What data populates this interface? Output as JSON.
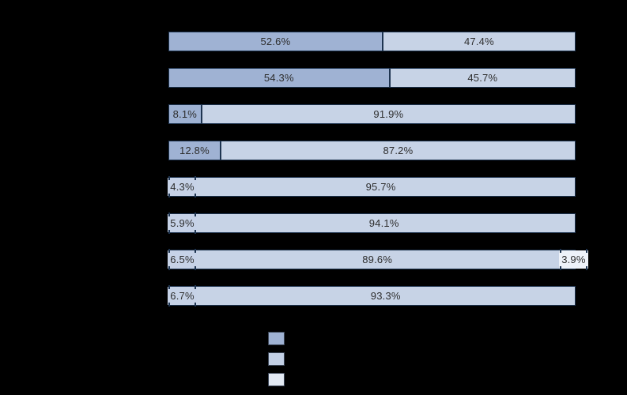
{
  "chart_data": {
    "type": "bar",
    "orientation": "horizontal",
    "stacked": true,
    "unit": "%",
    "title_visible": false,
    "category_labels_visible": false,
    "axis_visible": false,
    "xlim": [
      0,
      100
    ],
    "inside_label_min": 8,
    "rows": [
      {
        "segments": [
          {
            "series": 0,
            "value": 52.6,
            "label": "52.6%"
          },
          {
            "series": 1,
            "value": 47.4,
            "label": "47.4%"
          }
        ]
      },
      {
        "segments": [
          {
            "series": 0,
            "value": 54.3,
            "label": "54.3%"
          },
          {
            "series": 1,
            "value": 45.7,
            "label": "45.7%"
          }
        ]
      },
      {
        "segments": [
          {
            "series": 0,
            "value": 8.1,
            "label": "8.1%"
          },
          {
            "series": 1,
            "value": 91.9,
            "label": "91.9%"
          }
        ]
      },
      {
        "segments": [
          {
            "series": 0,
            "value": 12.8,
            "label": "12.8%"
          },
          {
            "series": 1,
            "value": 87.2,
            "label": "87.2%"
          }
        ]
      },
      {
        "segments": [
          {
            "series": 0,
            "value": 4.3,
            "label": "4.3%"
          },
          {
            "series": 1,
            "value": 95.7,
            "label": "95.7%"
          }
        ]
      },
      {
        "segments": [
          {
            "series": 0,
            "value": 5.9,
            "label": "5.9%"
          },
          {
            "series": 1,
            "value": 94.1,
            "label": "94.1%"
          }
        ]
      },
      {
        "segments": [
          {
            "series": 0,
            "value": 6.5,
            "label": "6.5%"
          },
          {
            "series": 1,
            "value": 89.6,
            "label": "89.6%"
          },
          {
            "series": 2,
            "value": 3.9,
            "label": "3.9%"
          }
        ]
      },
      {
        "segments": [
          {
            "series": 0,
            "value": 6.7,
            "label": "6.7%"
          },
          {
            "series": 1,
            "value": 93.3,
            "label": "93.3%"
          }
        ]
      }
    ],
    "series": [
      {
        "name": "segment-dark",
        "color": "#9fb2d3",
        "chip_color": "#c6d2e7"
      },
      {
        "name": "segment-light",
        "color": "#c7d3e6",
        "chip_color": "#dde5f1"
      },
      {
        "name": "segment-lightest",
        "color": "#e6ebf5",
        "chip_color": "#eef2f9"
      }
    ],
    "legend": {
      "position": "bottom-center",
      "labels_visible": false,
      "swatch_colors": [
        "#9fb2d3",
        "#c3d0e5",
        "#e3e9f3"
      ]
    }
  },
  "colors": {
    "background": "#000000",
    "segment_border": "#1e3450",
    "label_text": "#2e2e2e",
    "chip_tick": "#1e3450",
    "legend_swatch_border": "#3c4758"
  }
}
